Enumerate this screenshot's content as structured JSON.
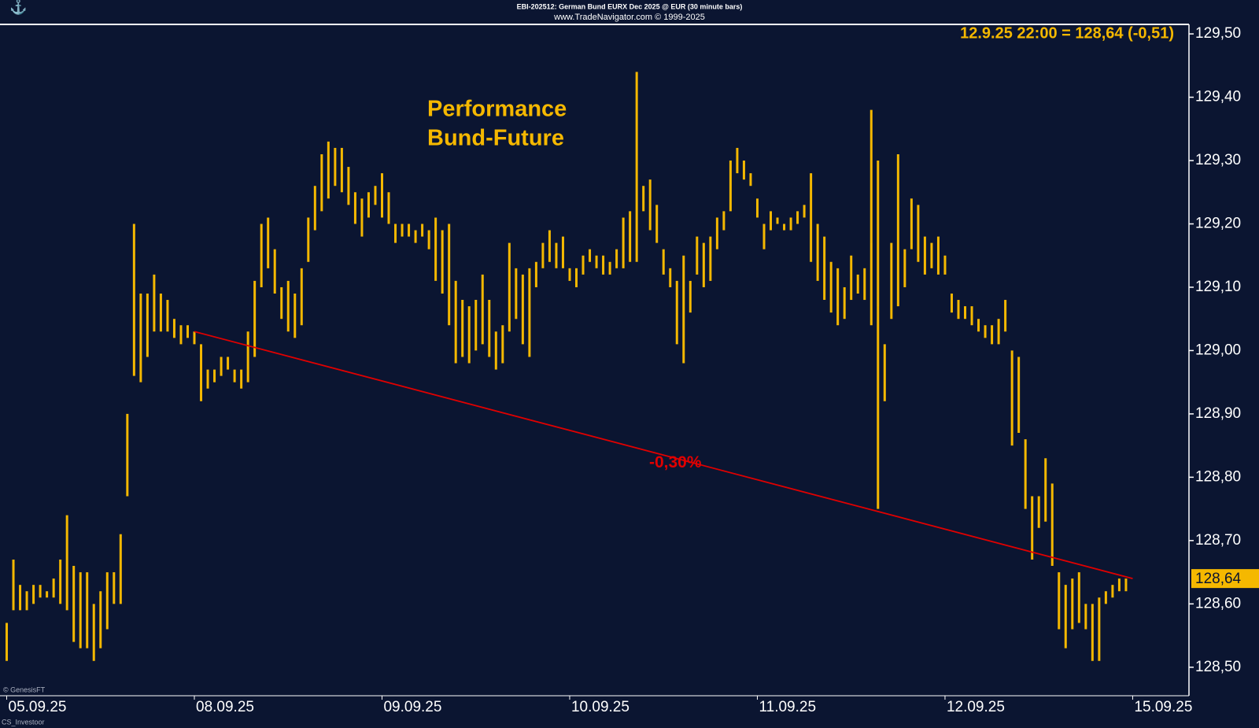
{
  "header": {
    "line1": "EBI-202512:  German Bund EURX Dec 2025 @ EUR  (30 minute bars)",
    "line2": "www.TradeNavigator.com © 1999-2025"
  },
  "footer": {
    "source": "© GenesisFT",
    "credit": "CS_Investoor"
  },
  "chart_data": {
    "type": "hlbar",
    "title_lines": [
      "Performance",
      "Bund-Future"
    ],
    "quote": "12.9.25 22:00 = 128,64 (-0,51)",
    "last_price": {
      "value": 128.64,
      "label": "128,64"
    },
    "color": "#f5b800",
    "high": [
      128.57,
      128.67,
      128.63,
      128.62,
      128.63,
      128.63,
      128.62,
      128.64,
      128.67,
      128.74,
      128.66,
      128.65,
      128.65,
      128.6,
      128.62,
      128.65,
      128.65,
      128.71,
      128.9,
      129.2,
      129.09,
      129.09,
      129.12,
      129.09,
      129.08,
      129.05,
      129.04,
      129.04,
      129.03,
      129.01,
      128.97,
      128.97,
      128.99,
      128.99,
      128.97,
      128.97,
      129.03,
      129.11,
      129.2,
      129.21,
      129.16,
      129.1,
      129.11,
      129.09,
      129.13,
      129.21,
      129.26,
      129.31,
      129.33,
      129.32,
      129.32,
      129.29,
      129.25,
      129.24,
      129.25,
      129.26,
      129.28,
      129.25,
      129.2,
      129.2,
      129.2,
      129.19,
      129.2,
      129.19,
      129.21,
      129.19,
      129.2,
      129.11,
      129.08,
      129.07,
      129.08,
      129.12,
      129.08,
      129.03,
      129.04,
      129.17,
      129.13,
      129.12,
      129.13,
      129.14,
      129.17,
      129.19,
      129.17,
      129.18,
      129.13,
      129.13,
      129.15,
      129.16,
      129.15,
      129.15,
      129.14,
      129.16,
      129.21,
      129.22,
      129.44,
      129.26,
      129.27,
      129.23,
      129.16,
      129.13,
      129.11,
      129.15,
      129.11,
      129.18,
      129.17,
      129.18,
      129.21,
      129.22,
      129.3,
      129.32,
      129.3,
      129.28,
      129.24,
      129.2,
      129.22,
      129.21,
      129.2,
      129.21,
      129.22,
      129.23,
      129.28,
      129.2,
      129.18,
      129.14,
      129.13,
      129.1,
      129.15,
      129.12,
      129.13,
      129.38,
      129.3,
      129.01,
      129.17,
      129.31,
      129.16,
      129.24,
      129.23,
      129.18,
      129.17,
      129.18,
      129.15,
      129.09,
      129.08,
      129.07,
      129.07,
      129.05,
      129.04,
      129.04,
      129.05,
      129.08,
      129.0,
      128.99,
      128.86,
      128.77,
      128.77,
      128.83,
      128.79,
      128.65,
      128.63,
      128.64,
      128.65,
      128.6,
      128.6,
      128.61,
      128.62,
      128.63,
      128.64,
      128.64
    ],
    "low": [
      128.51,
      128.59,
      128.59,
      128.59,
      128.6,
      128.61,
      128.61,
      128.61,
      128.6,
      128.59,
      128.54,
      128.53,
      128.53,
      128.51,
      128.53,
      128.56,
      128.6,
      128.6,
      128.77,
      128.96,
      128.95,
      128.99,
      129.03,
      129.03,
      129.03,
      129.02,
      129.01,
      129.02,
      129.01,
      128.92,
      128.94,
      128.95,
      128.96,
      128.97,
      128.95,
      128.94,
      128.95,
      128.99,
      129.1,
      129.13,
      129.09,
      129.05,
      129.03,
      129.02,
      129.04,
      129.14,
      129.19,
      129.22,
      129.24,
      129.26,
      129.25,
      129.23,
      129.2,
      129.18,
      129.21,
      129.23,
      129.21,
      129.2,
      129.17,
      129.18,
      129.18,
      129.17,
      129.18,
      129.16,
      129.11,
      129.09,
      129.04,
      128.98,
      128.99,
      128.98,
      129.0,
      129.01,
      128.99,
      128.97,
      128.98,
      129.03,
      129.05,
      129.01,
      128.99,
      129.1,
      129.13,
      129.14,
      129.13,
      129.13,
      129.11,
      129.1,
      129.12,
      129.14,
      129.13,
      129.12,
      129.12,
      129.13,
      129.13,
      129.14,
      129.14,
      129.22,
      129.19,
      129.17,
      129.12,
      129.1,
      129.01,
      128.98,
      129.06,
      129.12,
      129.1,
      129.11,
      129.16,
      129.19,
      129.22,
      129.28,
      129.27,
      129.26,
      129.21,
      129.16,
      129.19,
      129.2,
      129.19,
      129.19,
      129.2,
      129.21,
      129.14,
      129.11,
      129.08,
      129.06,
      129.04,
      129.05,
      129.08,
      129.09,
      129.08,
      129.04,
      128.75,
      128.92,
      129.05,
      129.07,
      129.1,
      129.16,
      129.14,
      129.12,
      129.13,
      129.12,
      129.12,
      129.06,
      129.05,
      129.05,
      129.04,
      129.03,
      129.02,
      129.01,
      129.01,
      129.03,
      128.85,
      128.87,
      128.75,
      128.67,
      128.72,
      128.73,
      128.66,
      128.56,
      128.53,
      128.56,
      128.57,
      128.56,
      128.51,
      128.51,
      128.6,
      128.61,
      128.62,
      128.62
    ],
    "xlim": [
      -1,
      176.4
    ],
    "xticks": [
      {
        "value": 0,
        "label": "05.09.25"
      },
      {
        "value": 28,
        "label": "08.09.25"
      },
      {
        "value": 56,
        "label": "09.09.25"
      },
      {
        "value": 84,
        "label": "10.09.25"
      },
      {
        "value": 112,
        "label": "11.09.25"
      },
      {
        "value": 140,
        "label": "12.09.25"
      },
      {
        "value": 168,
        "label": "15.09.25"
      }
    ],
    "ylim": [
      128.455,
      129.515
    ],
    "yticks": [
      {
        "value": 128.5,
        "label": "128,50"
      },
      {
        "value": 128.6,
        "label": "128,60"
      },
      {
        "value": 128.7,
        "label": "128,70"
      },
      {
        "value": 128.8,
        "label": "128,80"
      },
      {
        "value": 128.9,
        "label": "128,90"
      },
      {
        "value": 129.0,
        "label": "129,00"
      },
      {
        "value": 129.1,
        "label": "129,10"
      },
      {
        "value": 129.2,
        "label": "129,20"
      },
      {
        "value": 129.3,
        "label": "129,30"
      },
      {
        "value": 129.4,
        "label": "129,40"
      },
      {
        "value": 129.5,
        "label": "129,50"
      }
    ],
    "trendline": {
      "x": [
        28,
        168
      ],
      "values": [
        129.03,
        128.64
      ],
      "color": "#e00000",
      "label": "-0,30%"
    }
  }
}
